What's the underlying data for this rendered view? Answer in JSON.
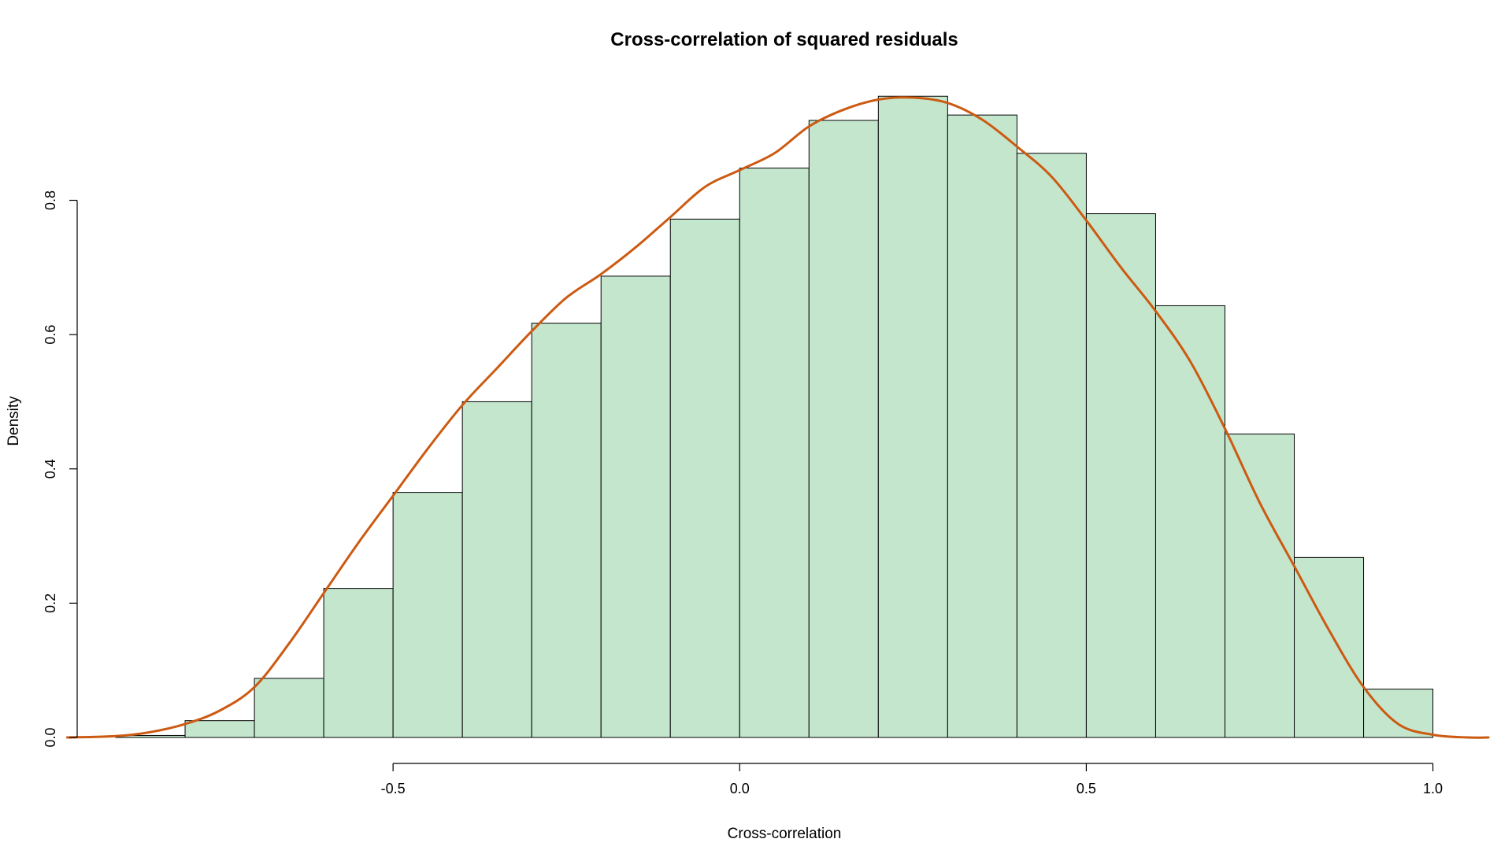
{
  "chart_data": {
    "type": "bar",
    "title": "Cross-correlation of squared residuals",
    "xlabel": "Cross-correlation",
    "ylabel": "Density",
    "bin_edges": [
      -0.9,
      -0.8,
      -0.7,
      -0.6,
      -0.5,
      -0.4,
      -0.3,
      -0.2,
      -0.1,
      0.0,
      0.1,
      0.2,
      0.3,
      0.4,
      0.5,
      0.6,
      0.7,
      0.8,
      0.9,
      1.0
    ],
    "values": [
      0.003,
      0.025,
      0.088,
      0.222,
      0.365,
      0.5,
      0.617,
      0.687,
      0.772,
      0.848,
      0.919,
      0.955,
      0.927,
      0.87,
      0.78,
      0.643,
      0.452,
      0.268,
      0.072
    ],
    "xlim": [
      -0.95,
      1.08
    ],
    "ylim": [
      0,
      0.96
    ],
    "x_ticks": [
      -0.5,
      0.0,
      0.5,
      1.0
    ],
    "x_tick_labels": [
      "-0.5",
      "0.0",
      "0.5",
      "1.0"
    ],
    "y_ticks": [
      0.0,
      0.2,
      0.4,
      0.6,
      0.8
    ],
    "y_tick_labels": [
      "0.0",
      "0.2",
      "0.4",
      "0.6",
      "0.8"
    ],
    "density_curve": {
      "x": [
        -0.97,
        -0.9,
        -0.85,
        -0.8,
        -0.75,
        -0.7,
        -0.65,
        -0.6,
        -0.55,
        -0.5,
        -0.45,
        -0.4,
        -0.35,
        -0.3,
        -0.25,
        -0.2,
        -0.15,
        -0.1,
        -0.05,
        0.0,
        0.05,
        0.1,
        0.15,
        0.2,
        0.25,
        0.3,
        0.35,
        0.4,
        0.45,
        0.5,
        0.55,
        0.6,
        0.65,
        0.7,
        0.75,
        0.8,
        0.85,
        0.9,
        0.95,
        1.0,
        1.05,
        1.08
      ],
      "y": [
        0.0,
        0.002,
        0.008,
        0.02,
        0.04,
        0.075,
        0.14,
        0.215,
        0.29,
        0.36,
        0.43,
        0.495,
        0.55,
        0.605,
        0.655,
        0.69,
        0.73,
        0.775,
        0.82,
        0.845,
        0.87,
        0.91,
        0.935,
        0.95,
        0.953,
        0.945,
        0.92,
        0.88,
        0.835,
        0.77,
        0.7,
        0.635,
        0.56,
        0.46,
        0.35,
        0.255,
        0.16,
        0.075,
        0.02,
        0.004,
        0.0,
        0.0
      ]
    },
    "colors": {
      "bar_fill": "#c3e6cd",
      "bar_stroke": "#000000",
      "density_line": "#cc5a12"
    },
    "grid": false,
    "legend": "none"
  }
}
